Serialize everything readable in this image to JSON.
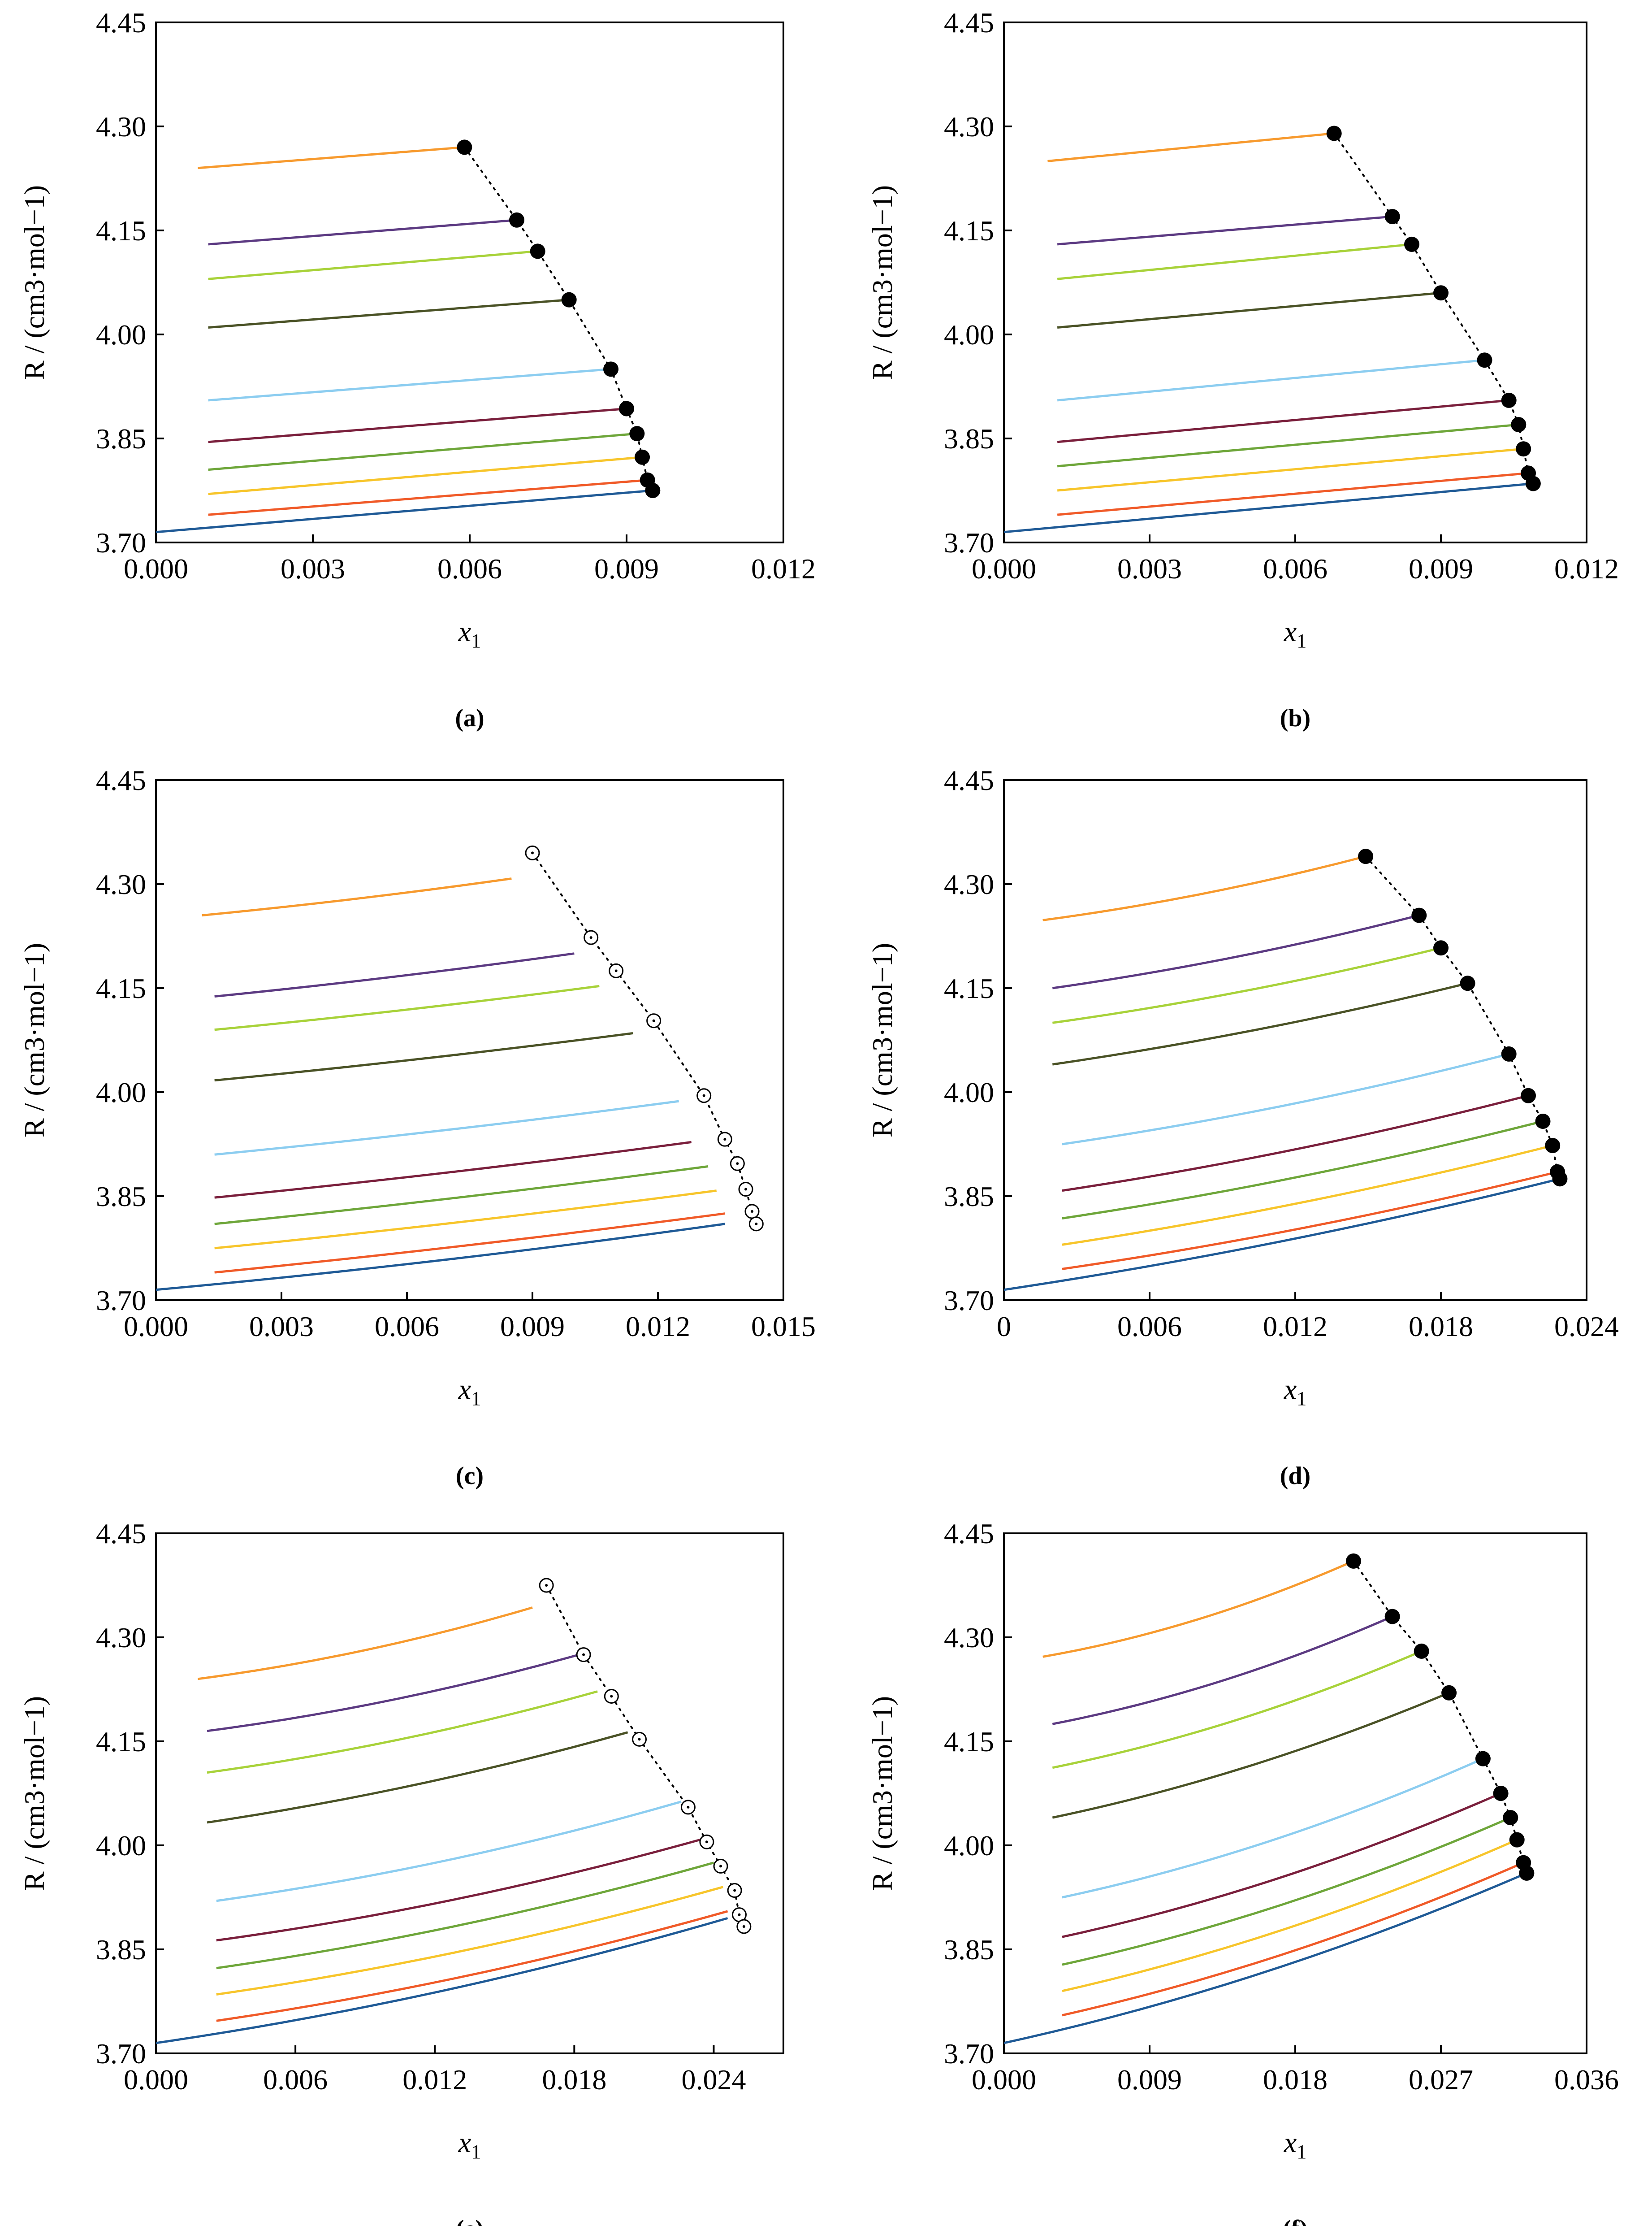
{
  "colors": [
    "#1f5a96",
    "#f05a28",
    "#f7c52b",
    "#6ea63a",
    "#7a1f3c",
    "#8ccdf0",
    "#4a5226",
    "#a8d23a",
    "#5c3a82",
    "#f79a2e"
  ],
  "chart_data": [
    {
      "type": "line",
      "panel": "(a)",
      "xlabel_main": "x",
      "xlabel_sub": "1",
      "ylabel": "R / (cm3·mol−1)",
      "xlim": [
        0,
        0.012
      ],
      "ylim": [
        3.7,
        4.45
      ],
      "xticks": [
        "0.000",
        "0.003",
        "0.006",
        "0.009",
        "0.012"
      ],
      "yticks": [
        "3.70",
        "3.85",
        "4.00",
        "4.15",
        "4.30",
        "4.45"
      ],
      "marker": "filled",
      "series": [
        {
          "x": [
            0.0,
            0.0095
          ],
          "y": [
            3.715,
            3.775
          ],
          "curv": 0.0
        },
        {
          "x": [
            0.001,
            0.0094
          ],
          "y": [
            3.74,
            3.79
          ],
          "curv": 0.0
        },
        {
          "x": [
            0.001,
            0.0093
          ],
          "y": [
            3.77,
            3.823
          ],
          "curv": 0.0
        },
        {
          "x": [
            0.001,
            0.0092
          ],
          "y": [
            3.805,
            3.857
          ],
          "curv": 0.0
        },
        {
          "x": [
            0.001,
            0.009
          ],
          "y": [
            3.845,
            3.893
          ],
          "curv": 0.0
        },
        {
          "x": [
            0.001,
            0.0087
          ],
          "y": [
            3.905,
            3.95
          ],
          "curv": 0.0
        },
        {
          "x": [
            0.001,
            0.0079
          ],
          "y": [
            4.01,
            4.05
          ],
          "curv": 0.0
        },
        {
          "x": [
            0.001,
            0.0073
          ],
          "y": [
            4.08,
            4.12
          ],
          "curv": 0.0
        },
        {
          "x": [
            0.001,
            0.0069
          ],
          "y": [
            4.13,
            4.165
          ],
          "curv": 0.0
        },
        {
          "x": [
            0.0008,
            0.0059
          ],
          "y": [
            4.24,
            4.27
          ],
          "curv": 0.0
        }
      ]
    },
    {
      "type": "line",
      "panel": "(b)",
      "xlabel_main": "x",
      "xlabel_sub": "1",
      "ylabel": "R / (cm3·mol−1)",
      "xlim": [
        0,
        0.012
      ],
      "ylim": [
        3.7,
        4.45
      ],
      "xticks": [
        "0.000",
        "0.003",
        "0.006",
        "0.009",
        "0.012"
      ],
      "yticks": [
        "3.70",
        "3.85",
        "4.00",
        "4.15",
        "4.30",
        "4.45"
      ],
      "marker": "filled",
      "series": [
        {
          "x": [
            0.0,
            0.0109
          ],
          "y": [
            3.715,
            3.785
          ],
          "curv": 0.0
        },
        {
          "x": [
            0.0011,
            0.0108
          ],
          "y": [
            3.74,
            3.8
          ],
          "curv": 0.0
        },
        {
          "x": [
            0.0011,
            0.0107
          ],
          "y": [
            3.775,
            3.835
          ],
          "curv": 0.0
        },
        {
          "x": [
            0.0011,
            0.0106
          ],
          "y": [
            3.81,
            3.87
          ],
          "curv": 0.0
        },
        {
          "x": [
            0.0011,
            0.0104
          ],
          "y": [
            3.845,
            3.905
          ],
          "curv": 0.0
        },
        {
          "x": [
            0.0011,
            0.0099
          ],
          "y": [
            3.905,
            3.963
          ],
          "curv": 0.0
        },
        {
          "x": [
            0.0011,
            0.009
          ],
          "y": [
            4.01,
            4.06
          ],
          "curv": 0.0
        },
        {
          "x": [
            0.0011,
            0.0084
          ],
          "y": [
            4.08,
            4.13
          ],
          "curv": 0.0
        },
        {
          "x": [
            0.0011,
            0.008
          ],
          "y": [
            4.13,
            4.17
          ],
          "curv": 0.0
        },
        {
          "x": [
            0.0009,
            0.0068
          ],
          "y": [
            4.25,
            4.29
          ],
          "curv": 0.0
        }
      ]
    },
    {
      "type": "line",
      "panel": "(c)",
      "xlabel_main": "x",
      "xlabel_sub": "1",
      "ylabel": "R / (cm3·mol−1)",
      "xlim": [
        0,
        0.015
      ],
      "ylim": [
        3.7,
        4.45
      ],
      "xticks": [
        "0.000",
        "0.003",
        "0.006",
        "0.009",
        "0.012",
        "0.015"
      ],
      "yticks": [
        "3.70",
        "3.85",
        "4.00",
        "4.15",
        "4.30",
        "4.45"
      ],
      "marker": "open",
      "series": [
        {
          "x": [
            0.0,
            0.0136
          ],
          "y": [
            3.715,
            3.81
          ],
          "curv": 0.01,
          "px": 0.01435,
          "py": 3.81
        },
        {
          "x": [
            0.0014,
            0.0136
          ],
          "y": [
            3.74,
            3.825
          ],
          "curv": 0.006,
          "px": 0.01425,
          "py": 3.828
        },
        {
          "x": [
            0.0014,
            0.0134
          ],
          "y": [
            3.775,
            3.858
          ],
          "curv": 0.006,
          "px": 0.0141,
          "py": 3.86
        },
        {
          "x": [
            0.0014,
            0.0132
          ],
          "y": [
            3.81,
            3.893
          ],
          "curv": 0.006,
          "px": 0.0139,
          "py": 3.897
        },
        {
          "x": [
            0.0014,
            0.0128
          ],
          "y": [
            3.848,
            3.928
          ],
          "curv": 0.006,
          "px": 0.0136,
          "py": 3.932
        },
        {
          "x": [
            0.0014,
            0.0125
          ],
          "y": [
            3.91,
            3.987
          ],
          "curv": 0.006,
          "px": 0.0131,
          "py": 3.995
        },
        {
          "x": [
            0.0014,
            0.0114
          ],
          "y": [
            4.017,
            4.085
          ],
          "curv": 0.005,
          "px": 0.0119,
          "py": 4.103
        },
        {
          "x": [
            0.0014,
            0.0106
          ],
          "y": [
            4.09,
            4.153
          ],
          "curv": 0.005,
          "px": 0.011,
          "py": 4.175
        },
        {
          "x": [
            0.0014,
            0.01
          ],
          "y": [
            4.138,
            4.2
          ],
          "curv": 0.005,
          "px": 0.0104,
          "py": 4.223
        },
        {
          "x": [
            0.0011,
            0.0085
          ],
          "y": [
            4.255,
            4.308
          ],
          "curv": 0.005,
          "px": 0.009,
          "py": 4.345
        }
      ]
    },
    {
      "type": "line",
      "panel": "(d)",
      "xlabel_main": "x",
      "xlabel_sub": "1",
      "ylabel": "R / (cm3·mol−1)",
      "xlim": [
        0,
        0.024
      ],
      "ylim": [
        3.7,
        4.45
      ],
      "xticks": [
        "0",
        "0.006",
        "0.012",
        "0.018",
        "0.024"
      ],
      "yticks": [
        "3.70",
        "3.85",
        "4.00",
        "4.15",
        "4.30",
        "4.45"
      ],
      "marker": "filled",
      "series": [
        {
          "x": [
            0.0,
            0.0229
          ],
          "y": [
            3.715,
            3.875
          ],
          "curv": 0.02
        },
        {
          "x": [
            0.0024,
            0.0228
          ],
          "y": [
            3.745,
            3.885
          ],
          "curv": 0.018
        },
        {
          "x": [
            0.0024,
            0.0226
          ],
          "y": [
            3.78,
            3.923
          ],
          "curv": 0.018
        },
        {
          "x": [
            0.0024,
            0.0222
          ],
          "y": [
            3.818,
            3.958
          ],
          "curv": 0.018
        },
        {
          "x": [
            0.0024,
            0.0216
          ],
          "y": [
            3.858,
            3.995
          ],
          "curv": 0.018
        },
        {
          "x": [
            0.0024,
            0.0208
          ],
          "y": [
            3.925,
            4.055
          ],
          "curv": 0.018
        },
        {
          "x": [
            0.002,
            0.0191
          ],
          "y": [
            4.04,
            4.157
          ],
          "curv": 0.015
        },
        {
          "x": [
            0.002,
            0.018
          ],
          "y": [
            4.1,
            4.208
          ],
          "curv": 0.015
        },
        {
          "x": [
            0.002,
            0.0171
          ],
          "y": [
            4.15,
            4.255
          ],
          "curv": 0.015
        },
        {
          "x": [
            0.0016,
            0.0149
          ],
          "y": [
            4.248,
            4.34
          ],
          "curv": 0.015
        }
      ]
    },
    {
      "type": "line",
      "panel": "(e)",
      "xlabel_main": "x",
      "xlabel_sub": "1",
      "ylabel": "R / (cm3·mol−1)",
      "xlim": [
        0,
        0.027
      ],
      "ylim": [
        3.7,
        4.45
      ],
      "xticks": [
        "0.000",
        "0.006",
        "0.012",
        "0.018",
        "0.024"
      ],
      "yticks": [
        "3.70",
        "3.85",
        "4.00",
        "4.15",
        "4.30",
        "4.45"
      ],
      "marker": "open",
      "series": [
        {
          "x": [
            0.0,
            0.0246
          ],
          "y": [
            3.715,
            3.895
          ],
          "curv": 0.03,
          "px": 0.0253,
          "py": 3.883
        },
        {
          "x": [
            0.0026,
            0.0246
          ],
          "y": [
            3.747,
            3.905
          ],
          "curv": 0.025,
          "px": 0.0251,
          "py": 3.9
        },
        {
          "x": [
            0.0026,
            0.0244
          ],
          "y": [
            3.785,
            3.94
          ],
          "curv": 0.025,
          "px": 0.0249,
          "py": 3.935
        },
        {
          "x": [
            0.0026,
            0.024
          ],
          "y": [
            3.823,
            3.975
          ],
          "curv": 0.025,
          "px": 0.0243,
          "py": 3.97
        },
        {
          "x": [
            0.0026,
            0.0234
          ],
          "y": [
            3.863,
            4.008
          ],
          "curv": 0.025,
          "px": 0.0237,
          "py": 4.005
        },
        {
          "x": [
            0.0026,
            0.0226
          ],
          "y": [
            3.92,
            4.063
          ],
          "curv": 0.025,
          "px": 0.0229,
          "py": 4.055
        },
        {
          "x": [
            0.0022,
            0.0203
          ],
          "y": [
            4.033,
            4.163
          ],
          "curv": 0.02,
          "px": 0.0208,
          "py": 4.153
        },
        {
          "x": [
            0.0022,
            0.019
          ],
          "y": [
            4.105,
            4.222
          ],
          "curv": 0.02,
          "px": 0.0196,
          "py": 4.215
        },
        {
          "x": [
            0.0022,
            0.0182
          ],
          "y": [
            4.165,
            4.275
          ],
          "curv": 0.02,
          "px": 0.0184,
          "py": 4.275
        },
        {
          "x": [
            0.0018,
            0.0162
          ],
          "y": [
            4.24,
            4.343
          ],
          "curv": 0.02,
          "px": 0.0168,
          "py": 4.375
        }
      ]
    },
    {
      "type": "line",
      "panel": "(f)",
      "xlabel_main": "x",
      "xlabel_sub": "1",
      "ylabel": "R / (cm3·mol−1)",
      "xlim": [
        0,
        0.036
      ],
      "ylim": [
        3.7,
        4.45
      ],
      "xticks": [
        "0.000",
        "0.009",
        "0.018",
        "0.027",
        "0.036"
      ],
      "yticks": [
        "3.70",
        "3.85",
        "4.00",
        "4.15",
        "4.30",
        "4.45"
      ],
      "marker": "filled",
      "series": [
        {
          "x": [
            0.0,
            0.0323
          ],
          "y": [
            3.715,
            3.96
          ],
          "curv": 0.04
        },
        {
          "x": [
            0.0036,
            0.0321
          ],
          "y": [
            3.755,
            3.975
          ],
          "curv": 0.035
        },
        {
          "x": [
            0.0036,
            0.0317
          ],
          "y": [
            3.79,
            4.008
          ],
          "curv": 0.035
        },
        {
          "x": [
            0.0036,
            0.0313
          ],
          "y": [
            3.828,
            4.04
          ],
          "curv": 0.035
        },
        {
          "x": [
            0.0036,
            0.0307
          ],
          "y": [
            3.868,
            4.075
          ],
          "curv": 0.035
        },
        {
          "x": [
            0.0036,
            0.0296
          ],
          "y": [
            3.925,
            4.125
          ],
          "curv": 0.035
        },
        {
          "x": [
            0.003,
            0.0275
          ],
          "y": [
            4.04,
            4.22
          ],
          "curv": 0.03
        },
        {
          "x": [
            0.003,
            0.0258
          ],
          "y": [
            4.112,
            4.28
          ],
          "curv": 0.03
        },
        {
          "x": [
            0.003,
            0.024
          ],
          "y": [
            4.175,
            4.33
          ],
          "curv": 0.03
        },
        {
          "x": [
            0.0024,
            0.0216
          ],
          "y": [
            4.272,
            4.41
          ],
          "curv": 0.03
        }
      ]
    }
  ]
}
